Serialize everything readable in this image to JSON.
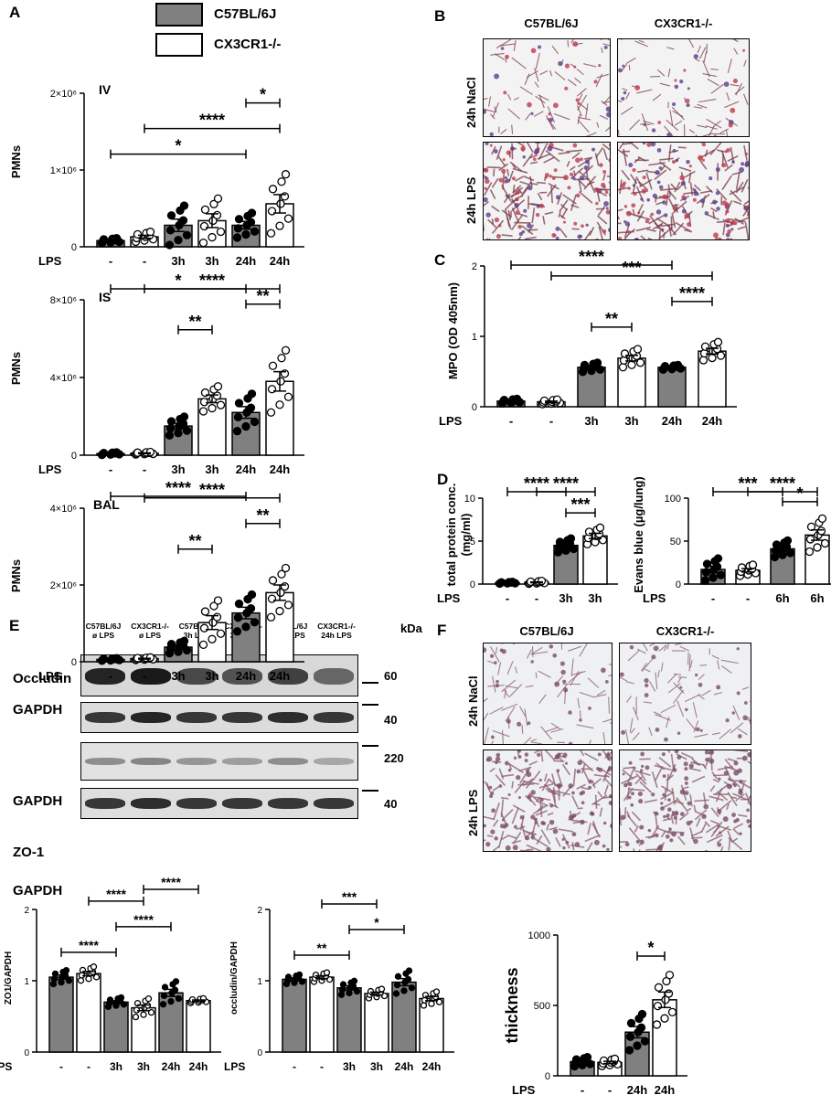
{
  "panels": {
    "A": "A",
    "B": "B",
    "C": "C",
    "D": "D",
    "E": "E",
    "F": "F"
  },
  "legend": {
    "items": [
      {
        "name": "C57BL/6J",
        "fill": "#808080"
      },
      {
        "name": "CX3CR1-/-",
        "fill": "#ffffff"
      }
    ]
  },
  "histology": {
    "cols": [
      "C57BL/6J",
      "CX3CR1-/-"
    ],
    "rows_B": [
      "24h NaCl",
      "24h LPS"
    ],
    "rows_F": [
      "24h NaCl",
      "24h LPS"
    ]
  },
  "blot": {
    "lanes": [
      "C57BL/6J\nø LPS",
      "CX3CR1-/-\nø LPS",
      "C57BL/6J\n3h LPS",
      "CX3CR1-/-\n3h LPS",
      "C57BL/6J\n24h LPS",
      "CX3CR1-/-\n24h LPS"
    ],
    "kda": "kDa",
    "rows": [
      {
        "name": "Occludin",
        "marker": "60"
      },
      {
        "name": "GAPDH",
        "marker": "40"
      },
      {
        "name": "ZO-1",
        "marker": "220"
      },
      {
        "name": "GAPDH",
        "marker": "40"
      }
    ]
  },
  "chart_data": [
    {
      "id": "A_IV",
      "type": "bar",
      "title": "IV",
      "ylabel": "PMNs",
      "xprefix": "LPS",
      "categories": [
        "-",
        "-",
        "3h",
        "3h",
        "24h",
        "24h"
      ],
      "values": [
        80000,
        130000,
        280000,
        340000,
        280000,
        560000
      ],
      "sem": [
        10000,
        20000,
        80000,
        90000,
        50000,
        120000
      ],
      "ylim": [
        0,
        2000000
      ],
      "yticks": [
        0,
        1000000,
        2000000
      ],
      "yticklabels": [
        "0",
        "1×10⁶",
        "2×10⁶"
      ],
      "brackets": [
        {
          "from": 0,
          "to": 4,
          "label": "*"
        },
        {
          "from": 1,
          "to": 5,
          "label": "****"
        },
        {
          "from": 4,
          "to": 5,
          "label": "*"
        }
      ]
    },
    {
      "id": "A_IS",
      "type": "bar",
      "title": "IS",
      "ylabel": "PMNs",
      "xprefix": "LPS",
      "categories": [
        "-",
        "-",
        "3h",
        "3h",
        "24h",
        "24h"
      ],
      "values": [
        80000,
        100000,
        1500000,
        2900000,
        2200000,
        3800000
      ],
      "sem": [
        20000,
        20000,
        150000,
        200000,
        300000,
        500000
      ],
      "ylim": [
        0,
        8000000
      ],
      "yticks": [
        0,
        4000000,
        8000000
      ],
      "yticklabels": [
        "0",
        "4×10⁶",
        "8×10⁶"
      ],
      "brackets": [
        {
          "from": 2,
          "to": 3,
          "label": "**"
        },
        {
          "from": 4,
          "to": 5,
          "label": "**"
        },
        {
          "from": 1,
          "to": 5,
          "label": "****"
        },
        {
          "from": 0,
          "to": 4,
          "label": "*"
        }
      ]
    },
    {
      "id": "A_BAL",
      "type": "bar",
      "title": "BAL",
      "ylabel": "PMNs",
      "xprefix": "LPS",
      "categories": [
        "-",
        "-",
        "3h",
        "3h",
        "24h",
        "24h"
      ],
      "values": [
        60000,
        80000,
        380000,
        1020000,
        1270000,
        1800000
      ],
      "sem": [
        10000,
        10000,
        50000,
        180000,
        150000,
        200000
      ],
      "ylim": [
        0,
        4000000
      ],
      "yticks": [
        0,
        2000000,
        4000000
      ],
      "yticklabels": [
        "0",
        "2×10⁶",
        "4×10⁶"
      ],
      "brackets": [
        {
          "from": 2,
          "to": 3,
          "label": "**"
        },
        {
          "from": 4,
          "to": 5,
          "label": "**"
        },
        {
          "from": 1,
          "to": 5,
          "label": "****"
        },
        {
          "from": 0,
          "to": 4,
          "label": "****"
        }
      ]
    },
    {
      "id": "C",
      "type": "bar",
      "ylabel": "MPO (OD 405nm)",
      "xprefix": "LPS",
      "categories": [
        "-",
        "-",
        "3h",
        "3h",
        "24h",
        "24h"
      ],
      "values": [
        0.08,
        0.07,
        0.56,
        0.69,
        0.56,
        0.79
      ],
      "sem": [
        0.01,
        0.01,
        0.02,
        0.04,
        0.01,
        0.04
      ],
      "ylim": [
        0,
        2
      ],
      "yticks": [
        0,
        1,
        2
      ],
      "yticklabels": [
        "0",
        "1",
        "2"
      ],
      "brackets": [
        {
          "from": 2,
          "to": 3,
          "label": "**"
        },
        {
          "from": 4,
          "to": 5,
          "label": "****"
        },
        {
          "from": 1,
          "to": 5,
          "label": "***"
        },
        {
          "from": 0,
          "to": 4,
          "label": "****"
        }
      ]
    },
    {
      "id": "D_protein",
      "type": "bar",
      "ylabel": "total protein conc. (mg/ml)",
      "xprefix": "LPS",
      "categories": [
        "-",
        "-",
        "3h",
        "3h"
      ],
      "values": [
        0.15,
        0.2,
        4.5,
        5.6
      ],
      "sem": [
        0.03,
        0.05,
        0.25,
        0.3
      ],
      "ylim": [
        0,
        10
      ],
      "yticks": [
        0,
        5,
        10
      ],
      "yticklabels": [
        "0",
        "5",
        "10"
      ],
      "brackets": [
        {
          "from": 2,
          "to": 3,
          "label": "***"
        },
        {
          "from": 1,
          "to": 3,
          "label": "****"
        },
        {
          "from": 0,
          "to": 2,
          "label": "****"
        }
      ]
    },
    {
      "id": "D_evans",
      "type": "bar",
      "ylabel": "Evans blue (µg/lung)",
      "xprefix": "LPS",
      "categories": [
        "-",
        "-",
        "6h",
        "6h"
      ],
      "values": [
        17,
        16,
        41,
        57
      ],
      "sem": [
        4,
        2,
        3,
        6
      ],
      "ylim": [
        0,
        100
      ],
      "yticks": [
        0,
        50,
        100
      ],
      "yticklabels": [
        "0",
        "50",
        "100"
      ],
      "brackets": [
        {
          "from": 2,
          "to": 3,
          "label": "*"
        },
        {
          "from": 1,
          "to": 3,
          "label": "****"
        },
        {
          "from": 0,
          "to": 2,
          "label": "***"
        }
      ]
    },
    {
      "id": "E_zo1",
      "type": "bar",
      "ylabel": "ZO1/GAPDH",
      "xprefix": "LPS",
      "categories": [
        "-",
        "-",
        "3h",
        "3h",
        "24h",
        "24h"
      ],
      "values": [
        1.05,
        1.1,
        0.7,
        0.62,
        0.83,
        0.72
      ],
      "sem": [
        0.03,
        0.03,
        0.02,
        0.04,
        0.05,
        0.01
      ],
      "ylim": [
        0,
        2
      ],
      "yticks": [
        0,
        1,
        2
      ],
      "yticklabels": [
        "0",
        "1",
        "2"
      ],
      "brackets": [
        {
          "from": 0,
          "to": 2,
          "label": "****"
        },
        {
          "from": 2,
          "to": 4,
          "label": "****"
        },
        {
          "from": 1,
          "to": 3,
          "label": "****"
        },
        {
          "from": 3,
          "to": 5,
          "label": "****"
        }
      ]
    },
    {
      "id": "E_occ",
      "type": "bar",
      "ylabel": "occludin/GAPDH",
      "xprefix": "LPS",
      "categories": [
        "-",
        "-",
        "3h",
        "3h",
        "24h",
        "24h"
      ],
      "values": [
        1.02,
        1.05,
        0.9,
        0.82,
        0.98,
        0.75
      ],
      "sem": [
        0.02,
        0.02,
        0.03,
        0.02,
        0.05,
        0.03
      ],
      "ylim": [
        0,
        2
      ],
      "yticks": [
        0,
        1,
        2
      ],
      "yticklabels": [
        "0",
        "1",
        "2"
      ],
      "brackets": [
        {
          "from": 0,
          "to": 2,
          "label": "**"
        },
        {
          "from": 2,
          "to": 4,
          "label": "*"
        },
        {
          "from": 1,
          "to": 3,
          "label": "***"
        }
      ]
    },
    {
      "id": "F_thickness",
      "type": "bar",
      "ylabel": "thickness",
      "xprefix": "LPS",
      "categories": [
        "-",
        "-",
        "24h",
        "24h"
      ],
      "values": [
        100,
        95,
        310,
        540
      ],
      "sem": [
        10,
        8,
        40,
        55
      ],
      "ylim": [
        0,
        1000
      ],
      "yticks": [
        0,
        500,
        1000
      ],
      "yticklabels": [
        "0",
        "500",
        "1000"
      ],
      "brackets": [
        {
          "from": 2,
          "to": 3,
          "label": "*"
        }
      ]
    }
  ]
}
